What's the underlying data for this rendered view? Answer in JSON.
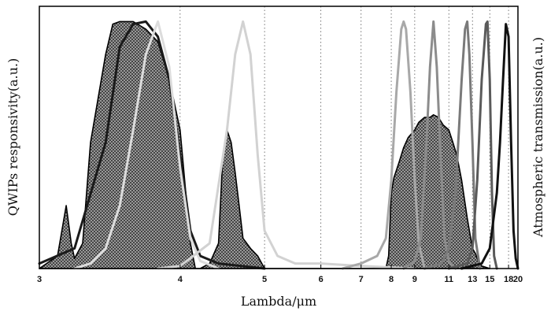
{
  "chart_data": {
    "type": "line",
    "xlabel": "Lambda/μm",
    "ylabel_left": "QWIPs responsivity(a.u.)",
    "ylabel_right": "Atmospheric transmission(a.u.)",
    "x_scale": "reciprocal",
    "xlim": [
      3,
      20
    ],
    "ylim": [
      0,
      1
    ],
    "x_ticks": [
      "3",
      "4",
      "5",
      "6",
      "7",
      "8",
      "9",
      "11",
      "13",
      "15",
      "18",
      "20"
    ],
    "grid": "vertical dotted lines at x ticks",
    "legend": "none",
    "atmospheric_transmission": {
      "style": "black outline with dark crosshatch fill",
      "x": [
        3.0,
        3.1,
        3.15,
        3.18,
        3.2,
        3.25,
        3.3,
        3.4,
        3.45,
        3.5,
        3.6,
        3.7,
        3.8,
        3.9,
        4.0,
        4.1,
        4.15,
        4.2,
        4.3,
        4.4,
        4.45,
        4.5,
        4.55,
        4.6,
        4.65,
        4.7,
        4.8,
        4.9,
        5.0,
        5.1,
        6.0,
        7.0,
        7.5,
        7.8,
        7.9,
        8.0,
        8.1,
        8.3,
        8.5,
        8.7,
        9.0,
        9.2,
        9.5,
        9.8,
        10.0,
        10.3,
        10.6,
        11.0,
        11.3,
        11.6,
        12.0,
        12.5,
        13.0,
        13.3,
        13.6,
        14.0,
        15.0
      ],
      "y": [
        0.0,
        0.05,
        0.25,
        0.1,
        0.04,
        0.1,
        0.5,
        0.85,
        0.97,
        0.98,
        0.98,
        0.95,
        0.9,
        0.75,
        0.55,
        0.1,
        0.0,
        0.0,
        0.02,
        0.1,
        0.45,
        0.55,
        0.5,
        0.38,
        0.25,
        0.12,
        0.08,
        0.05,
        0.0,
        0.0,
        0.0,
        0.0,
        0.0,
        0.0,
        0.05,
        0.3,
        0.36,
        0.42,
        0.48,
        0.52,
        0.55,
        0.58,
        0.6,
        0.6,
        0.61,
        0.6,
        0.57,
        0.55,
        0.5,
        0.45,
        0.35,
        0.2,
        0.08,
        0.06,
        0.03,
        0.01,
        0.0
      ]
    },
    "series": [
      {
        "color": "#1a1a1a",
        "x": [
          3.0,
          3.2,
          3.4,
          3.5,
          3.6,
          3.7,
          3.8,
          3.9,
          4.0,
          4.1,
          4.2,
          4.4,
          5.0
        ],
        "y": [
          0.02,
          0.08,
          0.5,
          0.88,
          0.97,
          0.98,
          0.92,
          0.75,
          0.45,
          0.15,
          0.05,
          0.02,
          0.0
        ]
      },
      {
        "color": "#dcdcdc",
        "x": [
          3.2,
          3.3,
          3.4,
          3.5,
          3.6,
          3.7,
          3.8,
          3.9,
          4.0,
          4.1,
          4.2,
          4.4
        ],
        "y": [
          0.0,
          0.02,
          0.08,
          0.25,
          0.55,
          0.85,
          0.98,
          0.8,
          0.4,
          0.12,
          0.03,
          0.0
        ]
      },
      {
        "color": "#d2d2d2",
        "x": [
          3.8,
          4.0,
          4.3,
          4.5,
          4.6,
          4.7,
          4.8,
          4.9,
          5.0,
          5.2,
          5.5,
          6.0,
          7.0,
          9.0
        ],
        "y": [
          0.0,
          0.01,
          0.1,
          0.55,
          0.85,
          0.98,
          0.85,
          0.45,
          0.15,
          0.05,
          0.02,
          0.02,
          0.01,
          0.0
        ]
      },
      {
        "color": "#a8a8a8",
        "x": [
          6.5,
          7.0,
          7.5,
          7.8,
          8.0,
          8.2,
          8.4,
          8.5,
          8.6,
          8.8,
          9.0,
          9.2,
          9.5
        ],
        "y": [
          0.0,
          0.02,
          0.05,
          0.12,
          0.35,
          0.7,
          0.95,
          0.98,
          0.95,
          0.7,
          0.35,
          0.1,
          0.0
        ]
      },
      {
        "color": "#8c8c8c",
        "x": [
          8.5,
          9.0,
          9.3,
          9.6,
          9.8,
          10.0,
          10.2,
          10.4,
          10.7,
          11.0,
          11.5
        ],
        "y": [
          0.0,
          0.03,
          0.12,
          0.5,
          0.8,
          0.98,
          0.8,
          0.5,
          0.12,
          0.03,
          0.0
        ]
      },
      {
        "color": "#7a7a7a",
        "x": [
          9.5,
          10.5,
          11.0,
          11.5,
          12.0,
          12.3,
          12.5,
          12.7,
          13.0,
          13.3,
          13.8
        ],
        "y": [
          0.0,
          0.02,
          0.08,
          0.3,
          0.75,
          0.95,
          0.98,
          0.85,
          0.5,
          0.12,
          0.0
        ]
      },
      {
        "color": "#5a5a5a",
        "x": [
          11.0,
          12.5,
          13.0,
          13.5,
          14.0,
          14.5,
          14.7,
          15.0,
          15.3,
          15.6,
          16.0
        ],
        "y": [
          0.0,
          0.02,
          0.08,
          0.35,
          0.75,
          0.97,
          0.98,
          0.75,
          0.3,
          0.05,
          0.0
        ]
      },
      {
        "color": "#111111",
        "x": [
          12.0,
          14.0,
          15.0,
          16.0,
          16.5,
          17.0,
          17.5,
          18.0,
          18.5,
          19.0,
          19.5,
          20.0
        ],
        "y": [
          0.0,
          0.02,
          0.08,
          0.3,
          0.5,
          0.75,
          0.97,
          0.92,
          0.5,
          0.15,
          0.04,
          0.0
        ]
      }
    ]
  }
}
